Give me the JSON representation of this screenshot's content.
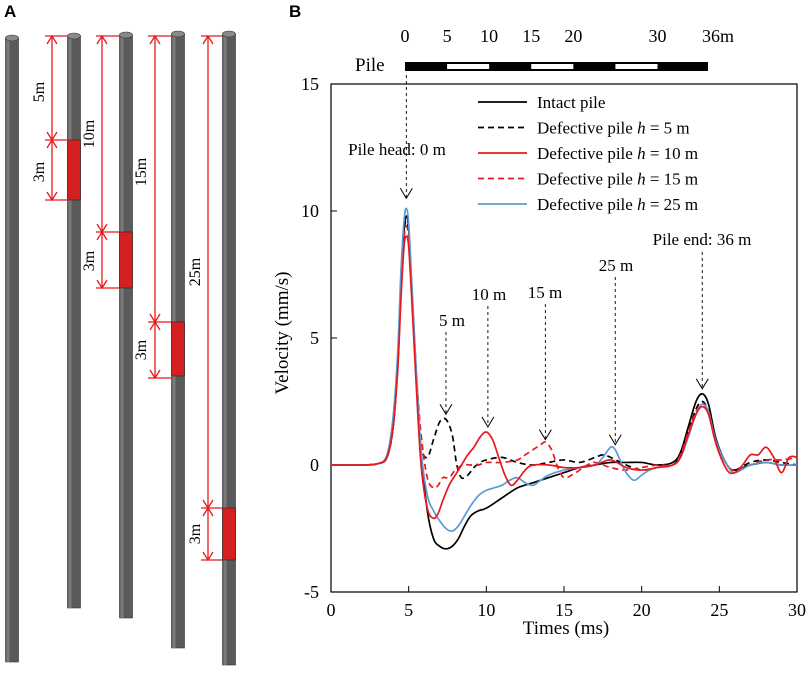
{
  "panels": {
    "a_label": "A",
    "b_label": "B"
  },
  "panel_a": {
    "defect_length_label": "3m",
    "piles": [
      {
        "depth_label": "5m"
      },
      {
        "depth_label": "10m"
      },
      {
        "depth_label": "15m"
      },
      {
        "depth_label": "25m"
      }
    ]
  },
  "pile_bar": {
    "label": "Pile",
    "unit_suffix": "m",
    "ticks": [
      0,
      5,
      10,
      15,
      20,
      30,
      36
    ],
    "last_tick_label": "36m"
  },
  "colors": {
    "black": "#000000",
    "red": "#e8191c",
    "blue": "#5b9bd5",
    "pile_gray": "#5a5a5a",
    "defect_red": "#d42020"
  },
  "chart_data": {
    "type": "line",
    "title": "",
    "xlabel": "Times (ms)",
    "ylabel": "Velocity (mm/s)",
    "xlim": [
      0,
      30
    ],
    "ylim": [
      -5,
      15
    ],
    "xticks": [
      0,
      5,
      10,
      15,
      20,
      25,
      30
    ],
    "yticks": [
      -5,
      0,
      5,
      10,
      15
    ],
    "legend_position": "top-right",
    "series": [
      {
        "name": "Intact pile",
        "style": "solid",
        "color": "#000000",
        "x": [
          0,
          2,
          3,
          3.6,
          4.0,
          4.3,
          4.5,
          4.7,
          4.85,
          5.0,
          5.2,
          5.5,
          5.8,
          6.2,
          6.6,
          7.0,
          7.4,
          7.8,
          8.2,
          8.6,
          9,
          9.5,
          10,
          11,
          12,
          13,
          14,
          15,
          16,
          17,
          18,
          19,
          20,
          21,
          22,
          22.5,
          23,
          23.5,
          23.9,
          24.3,
          24.8,
          25.5,
          26,
          27,
          28,
          29,
          30
        ],
        "y": [
          0,
          0,
          0.05,
          0.3,
          1.5,
          4.0,
          7.0,
          9.2,
          9.8,
          9.3,
          7.0,
          3.5,
          0.5,
          -1.8,
          -2.9,
          -3.2,
          -3.3,
          -3.2,
          -2.9,
          -2.4,
          -2.0,
          -1.8,
          -1.7,
          -1.3,
          -0.9,
          -0.7,
          -0.5,
          -0.3,
          -0.1,
          0,
          0.1,
          0.1,
          0.1,
          0,
          0.1,
          0.5,
          1.5,
          2.5,
          2.8,
          2.4,
          1.0,
          0,
          -0.2,
          0,
          0.1,
          0,
          0
        ]
      },
      {
        "name": "Defective pile h = 5 m",
        "style": "dashed",
        "color": "#000000",
        "x": [
          0,
          2,
          3,
          3.6,
          4.0,
          4.3,
          4.5,
          4.7,
          4.85,
          5.0,
          5.2,
          5.5,
          5.8,
          6.2,
          6.6,
          7.0,
          7.4,
          7.8,
          8.1,
          8.4,
          8.8,
          9.2,
          9.6,
          10,
          11,
          12,
          13,
          14,
          15,
          16,
          17,
          17.5,
          18,
          19,
          20,
          21,
          22,
          22.5,
          23,
          23.5,
          23.9,
          24.3,
          24.8,
          25.5,
          26,
          27,
          28,
          29,
          30
        ],
        "y": [
          0,
          0,
          0.05,
          0.3,
          1.5,
          4.0,
          7.0,
          9.1,
          9.6,
          9.1,
          6.8,
          3.3,
          0.8,
          0.3,
          1.0,
          1.7,
          1.8,
          1.2,
          0,
          -0.5,
          -0.4,
          -0.1,
          0.1,
          0.2,
          0.3,
          0.1,
          0,
          0.1,
          0.2,
          0.1,
          0.3,
          0.4,
          0.3,
          0,
          -0.2,
          -0.1,
          0,
          0.4,
          1.3,
          2.2,
          2.5,
          2.1,
          0.9,
          0,
          -0.2,
          0.1,
          0.2,
          0.1,
          0
        ]
      },
      {
        "name": "Defective pile h = 10 m",
        "style": "solid",
        "color": "#e8191c",
        "x": [
          0,
          2,
          3,
          3.6,
          4.0,
          4.3,
          4.5,
          4.7,
          4.85,
          5.0,
          5.2,
          5.5,
          5.8,
          6.2,
          6.6,
          6.9,
          7.2,
          7.6,
          8.0,
          8.4,
          8.8,
          9.2,
          9.6,
          10,
          10.4,
          10.8,
          11.2,
          11.6,
          12,
          12.5,
          13,
          14,
          15,
          16,
          17,
          18,
          19,
          20,
          21,
          22,
          22.5,
          23,
          23.5,
          23.9,
          24.3,
          24.8,
          25.5,
          26,
          26.5,
          27,
          27.5,
          28,
          28.5,
          29,
          29.5,
          30
        ],
        "y": [
          0,
          0,
          0.05,
          0.3,
          1.5,
          3.8,
          6.5,
          8.6,
          9.0,
          8.6,
          6.5,
          3.0,
          0,
          -1.7,
          -2.1,
          -1.9,
          -1.4,
          -0.8,
          -0.4,
          0,
          0.4,
          0.7,
          1.1,
          1.3,
          1.0,
          0.3,
          -0.4,
          -0.8,
          -0.6,
          -0.2,
          0,
          0,
          -0.1,
          -0.1,
          0,
          0.2,
          -0.1,
          -0.2,
          -0.1,
          0,
          0.3,
          1.2,
          2.0,
          2.3,
          2.0,
          0.8,
          -0.2,
          -0.3,
          0,
          0.4,
          0.4,
          0.7,
          0.3,
          -0.3,
          0.3,
          0.3
        ]
      },
      {
        "name": "Defective pile h = 15 m",
        "style": "dashed",
        "color": "#e8191c",
        "x": [
          0,
          2,
          3,
          3.6,
          4.0,
          4.3,
          4.5,
          4.7,
          4.85,
          5.0,
          5.2,
          5.5,
          5.8,
          6.2,
          6.6,
          6.9,
          7.2,
          7.6,
          8.0,
          8.5,
          9,
          9.5,
          10,
          11,
          12,
          12.5,
          13,
          13.5,
          13.8,
          14.2,
          14.6,
          15,
          15.5,
          16,
          16.5,
          17,
          18,
          19,
          20,
          21,
          22,
          22.5,
          23,
          23.5,
          23.9,
          24.3,
          24.8,
          25.5,
          26,
          27,
          28,
          29,
          30
        ],
        "y": [
          0,
          0,
          0.05,
          0.3,
          1.5,
          3.9,
          6.8,
          8.9,
          9.4,
          8.9,
          6.8,
          3.6,
          1.2,
          -0.5,
          -0.9,
          -0.8,
          -0.5,
          -0.5,
          -0.2,
          0,
          0,
          0,
          0.1,
          0.1,
          0.2,
          0.4,
          0.6,
          0.8,
          0.9,
          0.6,
          -0.1,
          -0.5,
          -0.4,
          -0.2,
          0,
          0.1,
          -0.1,
          -0.2,
          -0.1,
          0,
          0,
          0.4,
          1.3,
          2.1,
          2.4,
          2.1,
          0.9,
          0,
          -0.2,
          0,
          0.2,
          0.2,
          0.3
        ]
      },
      {
        "name": "Defective pile h = 25 m",
        "style": "solid",
        "color": "#5b9bd5",
        "x": [
          0,
          2,
          3,
          3.6,
          4.0,
          4.3,
          4.5,
          4.7,
          4.85,
          5.0,
          5.2,
          5.5,
          5.8,
          6.2,
          6.6,
          7.0,
          7.4,
          7.8,
          8.2,
          8.6,
          9,
          9.5,
          10,
          10.5,
          11,
          11.5,
          12,
          12.5,
          13,
          13.5,
          14,
          15,
          16,
          17,
          17.5,
          18,
          18.3,
          18.6,
          19,
          19.5,
          20,
          20.5,
          21,
          22,
          22.5,
          23,
          23.5,
          23.9,
          24.3,
          24.8,
          25.5,
          26,
          27,
          28,
          29,
          30
        ],
        "y": [
          0,
          0,
          0.05,
          0.4,
          1.9,
          4.5,
          7.6,
          9.6,
          10.1,
          9.5,
          7.2,
          3.6,
          0.6,
          -1.2,
          -1.8,
          -2.2,
          -2.5,
          -2.6,
          -2.4,
          -2.0,
          -1.6,
          -1.2,
          -1.0,
          -0.9,
          -0.8,
          -0.6,
          -0.5,
          -0.7,
          -0.8,
          -0.6,
          -0.4,
          -0.2,
          -0.1,
          0,
          0.3,
          0.7,
          0.6,
          0.2,
          -0.3,
          -0.6,
          -0.4,
          -0.2,
          -0.1,
          0,
          0.3,
          1.1,
          2.0,
          2.4,
          2.1,
          0.9,
          0,
          -0.3,
          0,
          0.1,
          0,
          0
        ]
      }
    ],
    "annotations": [
      {
        "text": "Pile head: 0 m",
        "arrow_x": 4.85,
        "arrow_to_y": 10.5
      },
      {
        "text": "5 m",
        "arrow_x": 7.4,
        "arrow_to_y": 2.0
      },
      {
        "text": "10 m",
        "arrow_x": 10.1,
        "arrow_to_y": 1.5
      },
      {
        "text": "15 m",
        "arrow_x": 13.8,
        "arrow_to_y": 1.0
      },
      {
        "text": "25 m",
        "arrow_x": 18.3,
        "arrow_to_y": 0.8
      },
      {
        "text": "Pile end: 36 m",
        "arrow_x": 23.9,
        "arrow_to_y": 3.0
      }
    ]
  }
}
